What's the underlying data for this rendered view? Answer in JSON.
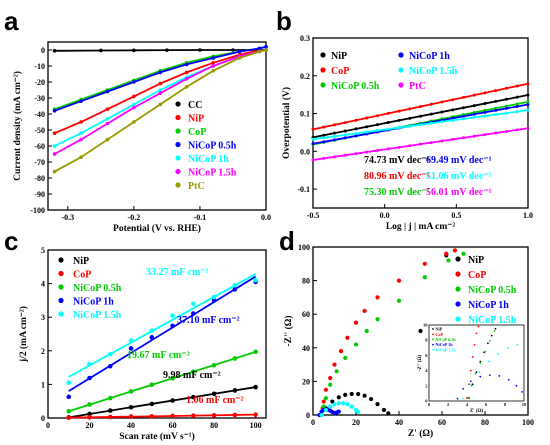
{
  "chart_data": [
    {
      "panel": "a",
      "type": "line",
      "xlabel": "Potential (V vs. RHE)",
      "ylabel": "Current density (mA cm⁻²)",
      "xlim": [
        -0.33,
        0.0
      ],
      "ylim": [
        -100,
        5
      ],
      "xticks": [
        -0.3,
        -0.2,
        -0.1,
        0.0
      ],
      "xtick_labels": [
        "-0.3",
        "-0.2",
        "-0.1",
        "0.0"
      ],
      "yticks": [
        0,
        -10,
        -20,
        -30,
        -40,
        -50,
        -60,
        -70,
        -80,
        -90,
        -100
      ],
      "ytick_labels": [
        "0",
        "-10",
        "-20",
        "-30",
        "-40",
        "-50",
        "-60",
        "-70",
        "-80",
        "-90",
        "-100"
      ],
      "legend_position": "bottom-right",
      "series": [
        {
          "name": "CC",
          "color": "#000000",
          "x": [
            -0.32,
            -0.25,
            -0.2,
            -0.15,
            -0.1,
            -0.05,
            0.0
          ],
          "y": [
            -0.5,
            -0.3,
            -0.2,
            -0.1,
            0,
            0,
            0
          ]
        },
        {
          "name": "NiP",
          "color": "#ff0000",
          "x": [
            -0.32,
            -0.28,
            -0.24,
            -0.2,
            -0.16,
            -0.12,
            -0.08,
            -0.04,
            -0.02,
            0.0
          ],
          "y": [
            -52,
            -45,
            -37,
            -29,
            -21,
            -14,
            -8,
            -3,
            -1,
            0
          ]
        },
        {
          "name": "CoP",
          "color": "#00cc00",
          "x": [
            -0.32,
            -0.28,
            -0.24,
            -0.2,
            -0.16,
            -0.12,
            -0.08,
            -0.04,
            -0.01,
            0.0
          ],
          "y": [
            -37,
            -31,
            -25,
            -19,
            -13,
            -8,
            -4,
            -1,
            1,
            2
          ]
        },
        {
          "name": "NiCoP 0.5h",
          "color": "#0000ff",
          "x": [
            -0.32,
            -0.28,
            -0.24,
            -0.2,
            -0.16,
            -0.12,
            -0.08,
            -0.04,
            -0.01,
            0.0
          ],
          "y": [
            -38,
            -32,
            -26,
            -20,
            -14,
            -9,
            -5,
            -1,
            1,
            2
          ]
        },
        {
          "name": "NiCoP 1h",
          "color": "#00ffff",
          "x": [
            -0.32,
            -0.28,
            -0.24,
            -0.2,
            -0.16,
            -0.12,
            -0.08,
            -0.04,
            -0.01,
            0.0
          ],
          "y": [
            -60,
            -52,
            -43,
            -34,
            -25,
            -17,
            -10,
            -4,
            -1,
            0
          ]
        },
        {
          "name": "NiCoP 1.5h",
          "color": "#ff00ff",
          "x": [
            -0.32,
            -0.28,
            -0.24,
            -0.2,
            -0.16,
            -0.12,
            -0.08,
            -0.04,
            -0.01,
            0.0
          ],
          "y": [
            -65,
            -56,
            -46,
            -36,
            -27,
            -18,
            -10,
            -4,
            -1,
            0
          ]
        },
        {
          "name": "PtC",
          "color": "#999900",
          "x": [
            -0.32,
            -0.28,
            -0.24,
            -0.2,
            -0.16,
            -0.12,
            -0.08,
            -0.04,
            -0.01,
            0.0
          ],
          "y": [
            -76,
            -67,
            -56,
            -45,
            -34,
            -23,
            -13,
            -5,
            -1,
            0
          ]
        }
      ]
    },
    {
      "panel": "b",
      "type": "line",
      "xlabel": "Log | j | mA cm⁻²",
      "ylabel": "Overpotential (V)",
      "xlim": [
        -0.5,
        1.0
      ],
      "ylim": [
        -0.15,
        0.3
      ],
      "xticks": [
        -0.5,
        0.0,
        0.5,
        1.0
      ],
      "xtick_labels": [
        "-0.5",
        "0.0",
        "0.5",
        "1.0"
      ],
      "yticks": [
        -0.1,
        0.0,
        0.1,
        0.2,
        0.3
      ],
      "ytick_labels": [
        "-0.1",
        "0.0",
        "0.1",
        "0.2",
        "0.3"
      ],
      "legend_position": "top",
      "tafel_labels": [
        [
          "74.73 mV dec⁻¹",
          "69.49 mV dec⁻¹"
        ],
        [
          "80.96 mV dec⁻¹",
          "51.06 mV dec⁻¹"
        ],
        [
          "75.30 mV dec⁻¹",
          "56.01 mV dec⁻¹"
        ]
      ],
      "series": [
        {
          "name": "NiP",
          "color": "#000000",
          "x": [
            -0.5,
            1.0
          ],
          "y": [
            0.037,
            0.149
          ]
        },
        {
          "name": "CoP",
          "color": "#ff0000",
          "x": [
            -0.5,
            1.0
          ],
          "y": [
            0.058,
            0.179
          ]
        },
        {
          "name": "NiCoP 0.5h",
          "color": "#00cc00",
          "x": [
            -0.5,
            1.0
          ],
          "y": [
            0.018,
            0.131
          ]
        },
        {
          "name": "NiCoP 1h",
          "color": "#0000ff",
          "x": [
            -0.5,
            1.0
          ],
          "y": [
            0.02,
            0.124
          ]
        },
        {
          "name": "NiCoP 1.5h",
          "color": "#00ffff",
          "x": [
            -0.5,
            1.0
          ],
          "y": [
            0.032,
            0.109
          ]
        },
        {
          "name": "PtC",
          "color": "#ff00ff",
          "x": [
            -0.5,
            1.0
          ],
          "y": [
            -0.023,
            0.061
          ]
        }
      ]
    },
    {
      "panel": "c",
      "type": "scatter",
      "xlabel": "Scan rate (mV s⁻¹)",
      "ylabel": "j/2 (mA cm⁻²)",
      "xlim": [
        0,
        105
      ],
      "ylim": [
        0,
        5
      ],
      "xticks": [
        0,
        20,
        40,
        60,
        80,
        100
      ],
      "xtick_labels": [
        "0",
        "20",
        "40",
        "60",
        "80",
        "100"
      ],
      "yticks": [
        0,
        1,
        2,
        3,
        4,
        5
      ],
      "ytick_labels": [
        "0",
        "1",
        "2",
        "3",
        "4",
        "5"
      ],
      "legend_position": "top-left",
      "annotations": [
        {
          "text": "33.27 mF cm⁻²",
          "color": "#00ffff"
        },
        {
          "text": "37.10 mF cm⁻²",
          "color": "#0000ff"
        },
        {
          "text": "19.67 mF cm⁻²",
          "color": "#00cc00"
        },
        {
          "text": "9.98 mF cm⁻²",
          "color": "#000000"
        },
        {
          "text": "1.06 mF cm⁻²",
          "color": "#ff0000"
        }
      ],
      "series": [
        {
          "name": "NiP",
          "color": "#000000",
          "x": [
            10,
            20,
            30,
            40,
            50,
            60,
            70,
            80,
            90,
            100
          ],
          "y": [
            0.02,
            0.12,
            0.22,
            0.32,
            0.42,
            0.52,
            0.62,
            0.72,
            0.82,
            0.92
          ]
        },
        {
          "name": "CoP",
          "color": "#ff0000",
          "x": [
            10,
            20,
            30,
            40,
            50,
            60,
            70,
            80,
            90,
            100
          ],
          "y": [
            0.01,
            0.02,
            0.03,
            0.04,
            0.05,
            0.06,
            0.07,
            0.08,
            0.09,
            0.1
          ]
        },
        {
          "name": "NiCoP 0.5h",
          "color": "#00cc00",
          "x": [
            10,
            20,
            30,
            40,
            50,
            60,
            70,
            80,
            90,
            100
          ],
          "y": [
            0.2,
            0.4,
            0.59,
            0.79,
            0.99,
            1.18,
            1.38,
            1.57,
            1.77,
            1.97
          ]
        },
        {
          "name": "NiCoP 1h",
          "color": "#0000ff",
          "x": [
            10,
            20,
            30,
            40,
            50,
            60,
            70,
            80,
            90,
            100
          ],
          "y": [
            0.63,
            1.19,
            1.54,
            2.07,
            2.4,
            2.74,
            3.11,
            3.5,
            3.83,
            4.05
          ]
        },
        {
          "name": "NiCoP 1.5h",
          "color": "#00ffff",
          "x": [
            10,
            20,
            30,
            40,
            50,
            60,
            70,
            80,
            90,
            100
          ],
          "y": [
            1.05,
            1.6,
            1.9,
            2.3,
            2.6,
            3.05,
            3.4,
            3.6,
            3.95,
            4.1
          ]
        }
      ]
    },
    {
      "panel": "d",
      "type": "scatter",
      "xlabel": "Z' (Ω)",
      "ylabel": "-Z'' (Ω)",
      "xlim": [
        0,
        100
      ],
      "ylim": [
        0,
        100
      ],
      "xticks": [
        0,
        20,
        40,
        60,
        80,
        100
      ],
      "xtick_labels": [
        "0",
        "20",
        "40",
        "60",
        "80",
        "100"
      ],
      "yticks": [
        0,
        20,
        40,
        60,
        80,
        100
      ],
      "ytick_labels": [
        "0",
        "20",
        "40",
        "60",
        "80",
        "100"
      ],
      "legend_position": "top-right",
      "inset": {
        "xlabel": "Z' (Ω)",
        "ylabel": "-Z'' (Ω)",
        "xlim": [
          0,
          10
        ],
        "ylim": [
          0,
          10
        ],
        "xticks": [
          0,
          2,
          4,
          6,
          8,
          10
        ],
        "yticks": [
          0,
          2,
          4,
          6,
          8,
          10
        ],
        "legend": [
          "NiP",
          "CoP",
          "NiCoP 0.5h",
          "NiCoP 1h",
          "NiCoP 1.5h"
        ]
      },
      "series": [
        {
          "name": "NiP",
          "color": "#000000",
          "x": [
            4,
            6,
            9,
            12,
            15,
            18,
            21,
            24,
            27,
            30,
            33,
            35,
            50,
            62
          ],
          "y": [
            0,
            4,
            8,
            10.5,
            12,
            12.5,
            12.5,
            11.5,
            9.5,
            6.5,
            3,
            1,
            50,
            95
          ]
        },
        {
          "name": "CoP",
          "color": "#ff0000",
          "x": [
            4,
            4.5,
            5,
            6,
            8,
            10,
            13,
            16,
            20,
            24,
            30,
            40,
            52,
            62,
            66
          ],
          "y": [
            0,
            4,
            8,
            15,
            22,
            30,
            38,
            46,
            55,
            62,
            70,
            80,
            90,
            96,
            98
          ]
        },
        {
          "name": "NiCoP 0.5h",
          "color": "#00cc00",
          "x": [
            4,
            5,
            6,
            8,
            11,
            15,
            20,
            25,
            30,
            40,
            52,
            63,
            70
          ],
          "y": [
            0,
            5,
            10,
            18,
            26,
            34,
            42,
            50,
            57,
            68,
            82,
            92,
            96
          ]
        },
        {
          "name": "NiCoP 1h",
          "color": "#0000ff",
          "x": [
            3,
            4,
            5,
            6,
            7,
            8,
            9,
            10,
            11,
            12
          ],
          "y": [
            0,
            2,
            3,
            3.3,
            3.2,
            2.6,
            1.8,
            1.2,
            1.5,
            2
          ]
        },
        {
          "name": "NiCoP 1.5h",
          "color": "#00ffff",
          "x": [
            4,
            6,
            8,
            10,
            12,
            14,
            16,
            18,
            20,
            21
          ],
          "y": [
            0,
            3,
            5,
            6.3,
            7,
            7,
            6.4,
            5,
            3,
            1.8
          ]
        }
      ]
    }
  ]
}
